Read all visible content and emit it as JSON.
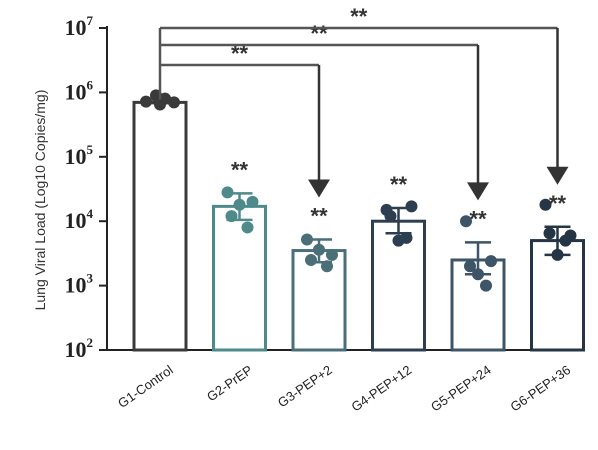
{
  "chart_data": {
    "type": "bar",
    "ylabel": "Lung Viral Load (Log10 Copies/mg)",
    "yscale": "log",
    "ylim": [
      100,
      10000000
    ],
    "yticks": [
      {
        "value": 100,
        "base": "10",
        "exp": "2"
      },
      {
        "value": 1000,
        "base": "10",
        "exp": "3"
      },
      {
        "value": 10000,
        "base": "10",
        "exp": "4"
      },
      {
        "value": 100000,
        "base": "10",
        "exp": "5"
      },
      {
        "value": 1000000,
        "base": "10",
        "exp": "6"
      },
      {
        "value": 10000000,
        "base": "10",
        "exp": "7"
      }
    ],
    "categories": [
      "G1-Control",
      "G2-PrEP",
      "G3-PEP+2",
      "G4-PEP+12",
      "G5-PEP+24",
      "G6-PEP+36"
    ],
    "colors": [
      "#3a3a3a",
      "#4f8a8b",
      "#4a6f78",
      "#2c3e50",
      "#3d5566",
      "#253545"
    ],
    "values": [
      700000,
      17000,
      3500,
      10000,
      2500,
      5000
    ],
    "error_upper": [
      720000,
      27000,
      5200,
      16000,
      4700,
      8200
    ],
    "error_lower": [
      680000,
      10500,
      2300,
      6500,
      1500,
      3000
    ],
    "points": [
      [
        720000,
        900000,
        800000,
        700000,
        650000
      ],
      [
        28000,
        20000,
        12000,
        8000,
        18000
      ],
      [
        5200,
        3000,
        2500,
        2000,
        3600
      ],
      [
        15000,
        17000,
        12000,
        5500,
        5000
      ],
      [
        10000,
        2400,
        2000,
        1000,
        1500
      ],
      [
        18000,
        6000,
        6500,
        5000,
        3000
      ]
    ],
    "significance": [
      "",
      "**",
      "**",
      "**",
      "**",
      "**"
    ],
    "comparisons": [
      {
        "from": "G1-Control",
        "to": "G3-PEP+2",
        "label": "**"
      },
      {
        "from": "G1-Control",
        "to": "G5-PEP+24",
        "label": "**"
      },
      {
        "from": "G1-Control",
        "to": "G6-PEP+36",
        "label": "**"
      }
    ]
  }
}
